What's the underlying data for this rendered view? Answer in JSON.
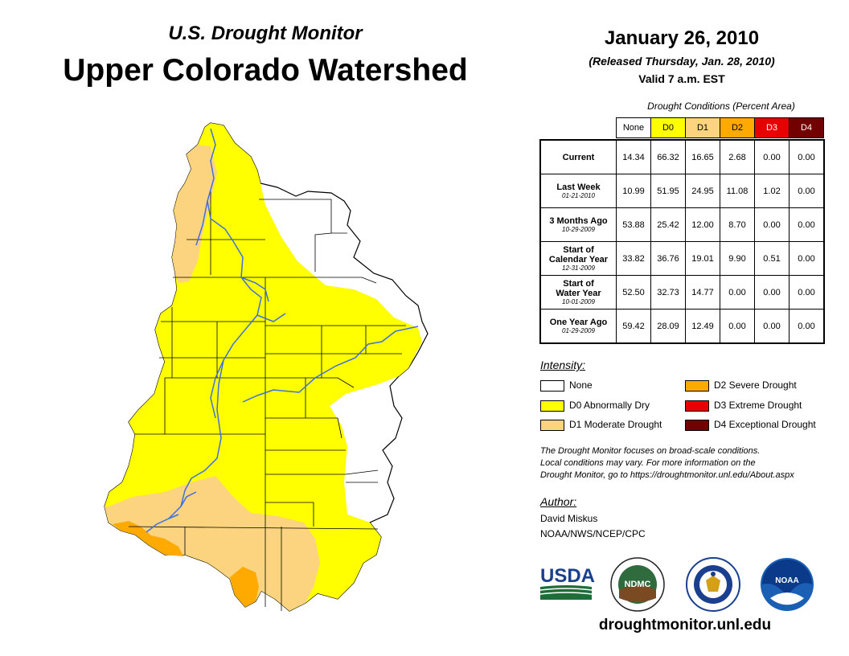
{
  "header": {
    "subtitle": "U.S. Drought Monitor",
    "title": "Upper Colorado Watershed",
    "date": "January 26, 2010",
    "released": "(Released Thursday, Jan. 28, 2010)",
    "valid": "Valid 7 a.m. EST"
  },
  "table": {
    "caption": "Drought Conditions (Percent Area)",
    "columns": [
      "None",
      "D0",
      "D1",
      "D2",
      "D3",
      "D4"
    ],
    "column_colors": [
      "#ffffff",
      "#ffff00",
      "#fcd37f",
      "#ffaa00",
      "#e60000",
      "#730000"
    ],
    "rows": [
      {
        "label": "Current",
        "label2": "",
        "date": "",
        "values": [
          "14.34",
          "66.32",
          "16.65",
          "2.68",
          "0.00",
          "0.00"
        ]
      },
      {
        "label": "Last Week",
        "label2": "",
        "date": "01-21-2010",
        "values": [
          "10.99",
          "51.95",
          "24.95",
          "11.08",
          "1.02",
          "0.00"
        ]
      },
      {
        "label": "3 Months Ago",
        "label2": "",
        "date": "10-29-2009",
        "values": [
          "53.88",
          "25.42",
          "12.00",
          "8.70",
          "0.00",
          "0.00"
        ]
      },
      {
        "label": "Start of",
        "label2": "Calendar Year",
        "date": "12-31-2009",
        "values": [
          "33.82",
          "36.76",
          "19.01",
          "9.90",
          "0.51",
          "0.00"
        ]
      },
      {
        "label": "Start of",
        "label2": "Water Year",
        "date": "10-01-2009",
        "values": [
          "52.50",
          "32.73",
          "14.77",
          "0.00",
          "0.00",
          "0.00"
        ]
      },
      {
        "label": "One Year Ago",
        "label2": "",
        "date": "01-29-2009",
        "values": [
          "59.42",
          "28.09",
          "12.49",
          "0.00",
          "0.00",
          "0.00"
        ]
      }
    ]
  },
  "legend": {
    "title": "Intensity:",
    "items": [
      {
        "label": "None",
        "color": "#ffffff"
      },
      {
        "label": "D0 Abnormally Dry",
        "color": "#ffff00"
      },
      {
        "label": "D1 Moderate Drought",
        "color": "#fcd37f"
      },
      {
        "label": "D2 Severe Drought",
        "color": "#ffaa00"
      },
      {
        "label": "D3 Extreme Drought",
        "color": "#e60000"
      },
      {
        "label": "D4 Exceptional Drought",
        "color": "#730000"
      }
    ]
  },
  "note": {
    "line1": "The Drought Monitor focuses on broad-scale conditions.",
    "line2": "Local conditions may vary. For more information on the",
    "line3": "Drought Monitor, go to https://droughtmonitor.unl.edu/About.aspx"
  },
  "author": {
    "heading": "Author:",
    "name": "David Miskus",
    "agency": "NOAA/NWS/NCEP/CPC"
  },
  "logos": {
    "usda": "USDA",
    "ndmc": "NDMC",
    "noaa": "NOAA"
  },
  "website": "droughtmonitor.unl.edu",
  "colors": {
    "none": "#ffffff",
    "d0": "#ffff00",
    "d1": "#fcd37f",
    "d2": "#ffaa00",
    "river": "#3f6fe0"
  }
}
